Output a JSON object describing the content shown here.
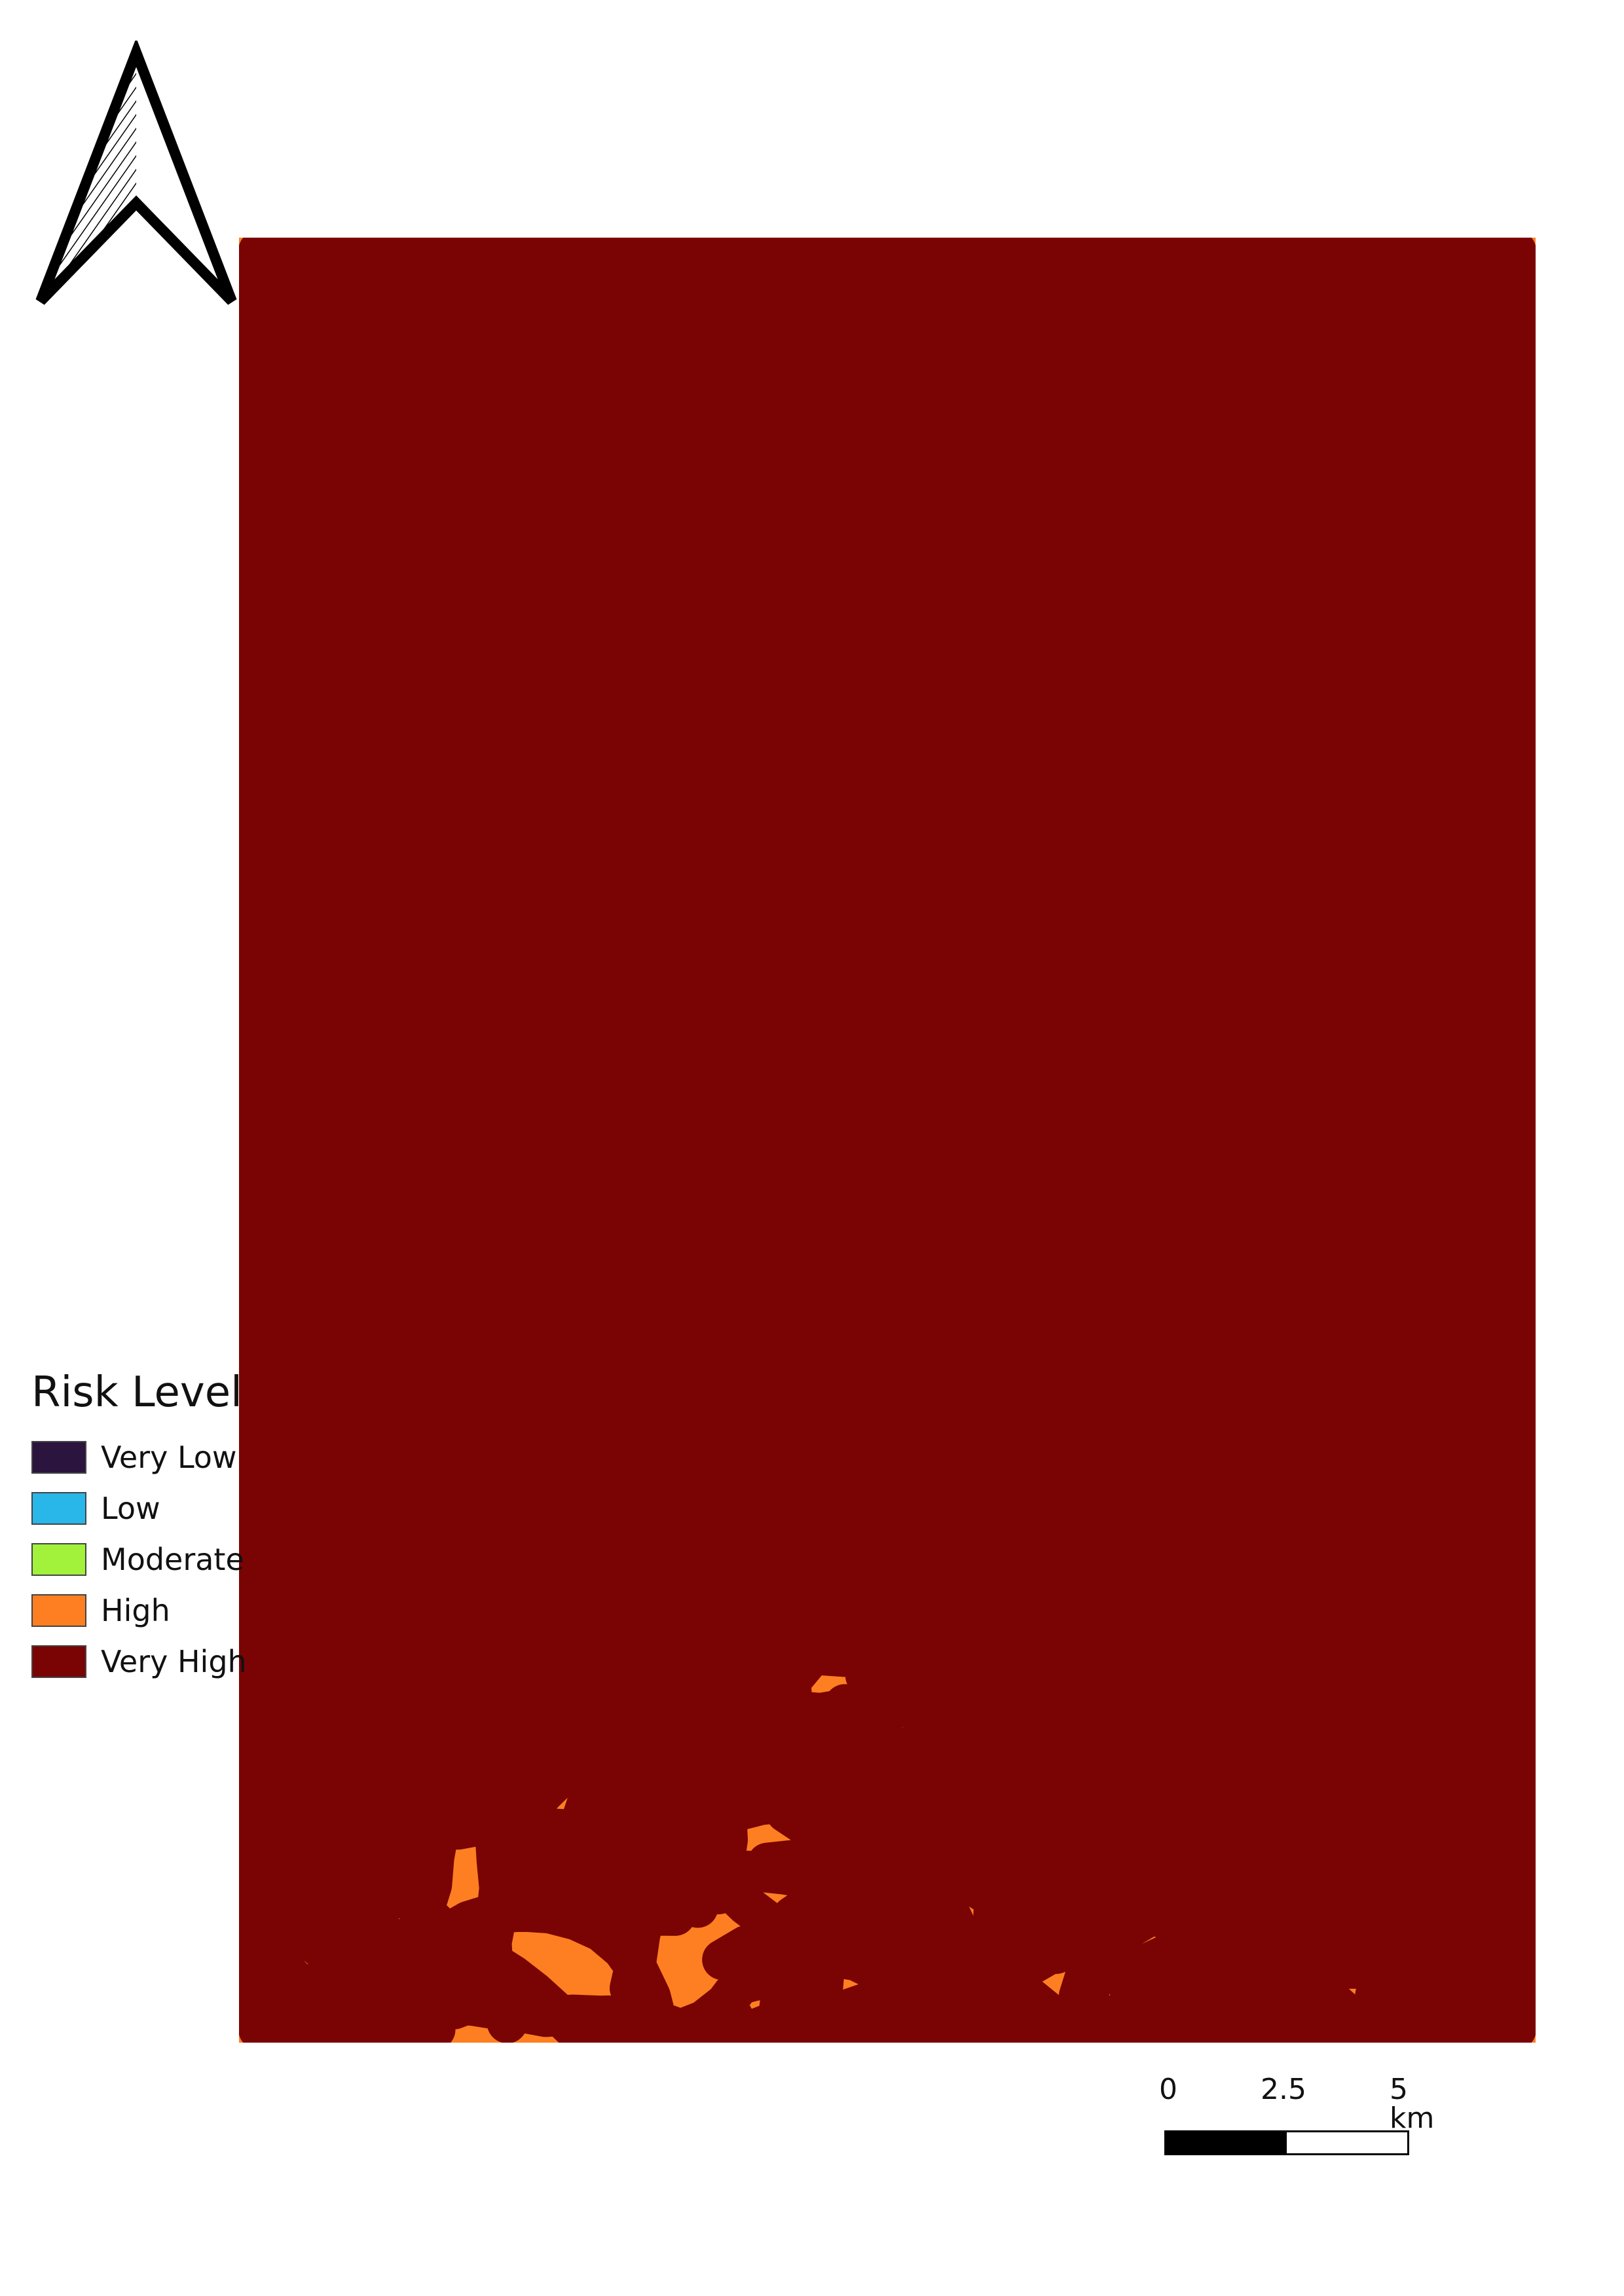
{
  "legend": {
    "title": "Risk Level",
    "items": [
      {
        "label": "Very Low",
        "color": "#2b143e"
      },
      {
        "label": "Low",
        "color": "#29b6e8"
      },
      {
        "label": "Moderate",
        "color": "#a2f23c"
      },
      {
        "label": "High",
        "color": "#fd7f22"
      },
      {
        "label": "Very High",
        "color": "#7a0403"
      }
    ]
  },
  "scalebar": {
    "labels": [
      "0",
      "2.5",
      "5 km"
    ]
  },
  "north_arrow": {
    "icon": "north-arrow-icon"
  }
}
